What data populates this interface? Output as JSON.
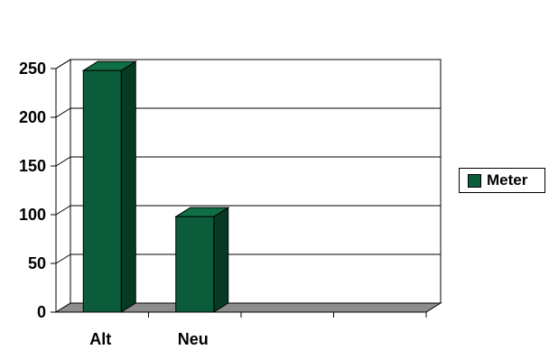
{
  "chart_data": {
    "type": "bar",
    "categories": [
      "Alt",
      "Neu",
      "",
      ""
    ],
    "series": [
      {
        "name": "Meter",
        "values": [
          248,
          98,
          0,
          0
        ]
      }
    ],
    "ylim": [
      0,
      250
    ],
    "yticks": [
      0,
      50,
      100,
      150,
      200,
      250
    ],
    "grid": true,
    "three_d": true,
    "legend_position": "right",
    "colors": {
      "bar_front": "#0b5c3a",
      "bar_side": "#063a22",
      "bar_top": "#0e6e44",
      "floor": "#8c8c8c",
      "wall": "#ffffff",
      "grid": "#000000"
    }
  }
}
